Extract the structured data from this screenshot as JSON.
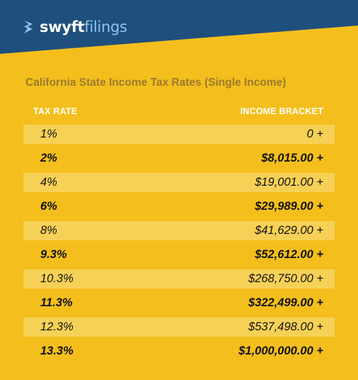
{
  "brand": {
    "name_bold": "swyft",
    "name_light": "filings",
    "colors": {
      "header_navy": "#1f4f7d",
      "accent_blue": "#8cc6ec",
      "background_yellow": "#f4bf1d",
      "row_highlight": "#f7d156",
      "title_brown": "#9b7a2c"
    }
  },
  "table": {
    "title": "California State Income Tax Rates (Single Income)",
    "headers": {
      "rate": "TAX RATE",
      "bracket": "INCOME BRACKET"
    },
    "rows": [
      {
        "rate": "1%",
        "bracket": "0 +"
      },
      {
        "rate": "2%",
        "bracket": "$8,015.00 +"
      },
      {
        "rate": "4%",
        "bracket": "$19,001.00 +"
      },
      {
        "rate": "6%",
        "bracket": "$29,989.00 +"
      },
      {
        "rate": "8%",
        "bracket": "$41,629.00 +"
      },
      {
        "rate": "9.3%",
        "bracket": "$52,612.00 +"
      },
      {
        "rate": "10.3%",
        "bracket": "$268,750.00 +"
      },
      {
        "rate": "11.3%",
        "bracket": "$322,499.00 +"
      },
      {
        "rate": "12.3%",
        "bracket": "$537,498.00 +"
      },
      {
        "rate": "13.3%",
        "bracket": "$1,000,000.00 +"
      }
    ]
  }
}
